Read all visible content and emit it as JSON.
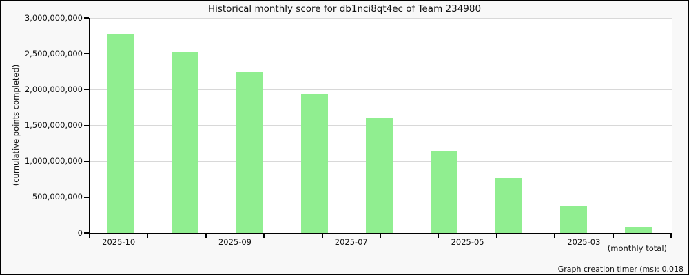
{
  "window": {
    "background_color": "#f8f8f8",
    "border_color": "#000000"
  },
  "header": {
    "title": "Historical monthly score for db1nci8qt4ec of Team 234980"
  },
  "footer": {
    "timer_text": "Graph creation timer (ms): 0.018"
  },
  "chart_data": {
    "type": "bar",
    "title": "Historical monthly score for db1nci8qt4ec of Team 234980",
    "ylabel": "(cumulative points completed)",
    "xlabel_note": "(monthly total)",
    "ylim": [
      0,
      3000000000
    ],
    "ytick_interval": 500000000,
    "ytick_labels": [
      "0",
      "500,000,000",
      "1,000,000,000",
      "1,500,000,000",
      "2,000,000,000",
      "2,500,000,000",
      "3,000,000,000"
    ],
    "xtick_labels": [
      "2025-10",
      "2025-09",
      "2025-07",
      "2025-05",
      "2025-03"
    ],
    "values": [
      2780000000,
      2530000000,
      2240000000,
      1940000000,
      1610000000,
      1150000000,
      770000000,
      375000000,
      90000000
    ],
    "grid": true,
    "legend": false,
    "bar_color": "#90EE90",
    "plot_background": "#ffffff",
    "gridline_color": "#d8d8d8",
    "axis_color": "#000000"
  }
}
